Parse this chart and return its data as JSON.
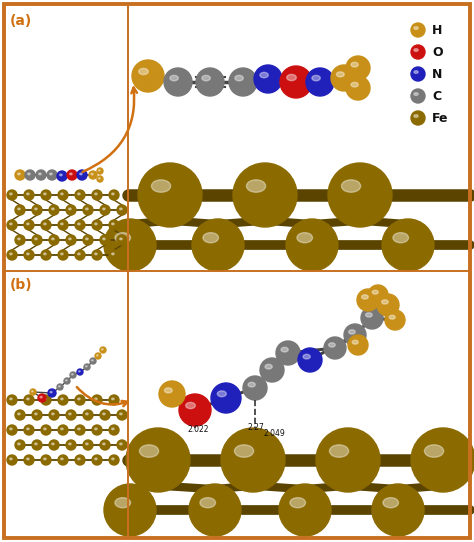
{
  "fig_width": 4.74,
  "fig_height": 5.42,
  "dpi": 100,
  "bg_color": "#ffffff",
  "border_color": "#c87020",
  "panel_a_label": "(a)",
  "panel_b_label": "(b)",
  "legend_items": [
    {
      "label": "H",
      "color": "#c89018"
    },
    {
      "label": "O",
      "color": "#cc1010"
    },
    {
      "label": "N",
      "color": "#2020bb"
    },
    {
      "label": "C",
      "color": "#787878"
    },
    {
      "label": "Fe",
      "color": "#8b6a00"
    }
  ],
  "fe_color": "#8b6a00",
  "fe_dark": "#5a4400",
  "h_color": "#c89018",
  "o_color": "#cc1010",
  "n_color": "#2020bb",
  "c_color": "#787878",
  "arrow_color": "#d07010",
  "label_color": "#d07010",
  "text_color": "#111111",
  "bond_distances": [
    "2.022",
    "2.27",
    "2.049"
  ]
}
